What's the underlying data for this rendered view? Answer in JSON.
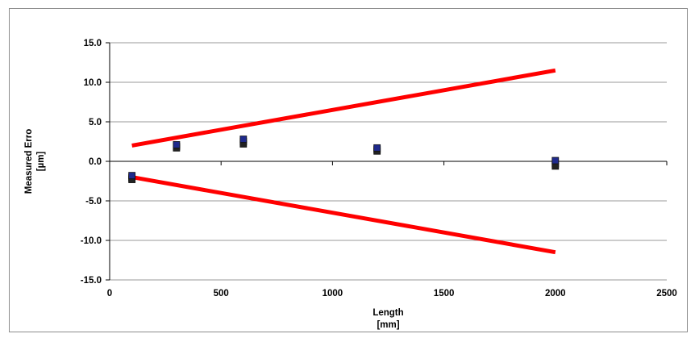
{
  "chart_data": {
    "type": "scatter",
    "title": "",
    "xlabel": [
      "Length",
      "[mm]"
    ],
    "ylabel": [
      "Measured Erro",
      "[µm]"
    ],
    "xlim": [
      0,
      2500
    ],
    "ylim": [
      -15,
      15
    ],
    "x_ticks": [
      0,
      500,
      1000,
      1500,
      2000,
      2500
    ],
    "y_ticks": [
      15,
      10,
      5,
      0,
      -5,
      -10,
      -15
    ],
    "y_tick_labels": [
      "15.0",
      "10.0",
      "5.0",
      "0.0",
      "-5.0",
      "-10.0",
      "-15.0"
    ],
    "grid": true,
    "legend": "none",
    "series": [
      {
        "type": "scatter",
        "color": "#1f2a8c",
        "marker": "square",
        "points": [
          [
            100,
            -1.8
          ],
          [
            300,
            2.1
          ],
          [
            600,
            2.8
          ],
          [
            1200,
            1.7
          ],
          [
            2000,
            0.1
          ]
        ]
      },
      {
        "type": "scatter",
        "color": "#222222",
        "marker": "square",
        "points": [
          [
            100,
            -2.1
          ],
          [
            300,
            1.9
          ],
          [
            600,
            2.5
          ],
          [
            1200,
            1.5
          ],
          [
            2000,
            -0.3
          ],
          [
            100,
            -2.3
          ],
          [
            300,
            1.7
          ],
          [
            600,
            2.2
          ],
          [
            1200,
            1.3
          ],
          [
            2000,
            -0.6
          ]
        ]
      },
      {
        "type": "line",
        "color": "#ff0000",
        "points": [
          [
            100,
            2.0
          ],
          [
            2000,
            11.5
          ]
        ]
      },
      {
        "type": "line",
        "color": "#ff0000",
        "points": [
          [
            100,
            -2.0
          ],
          [
            2000,
            -11.5
          ]
        ]
      }
    ]
  }
}
